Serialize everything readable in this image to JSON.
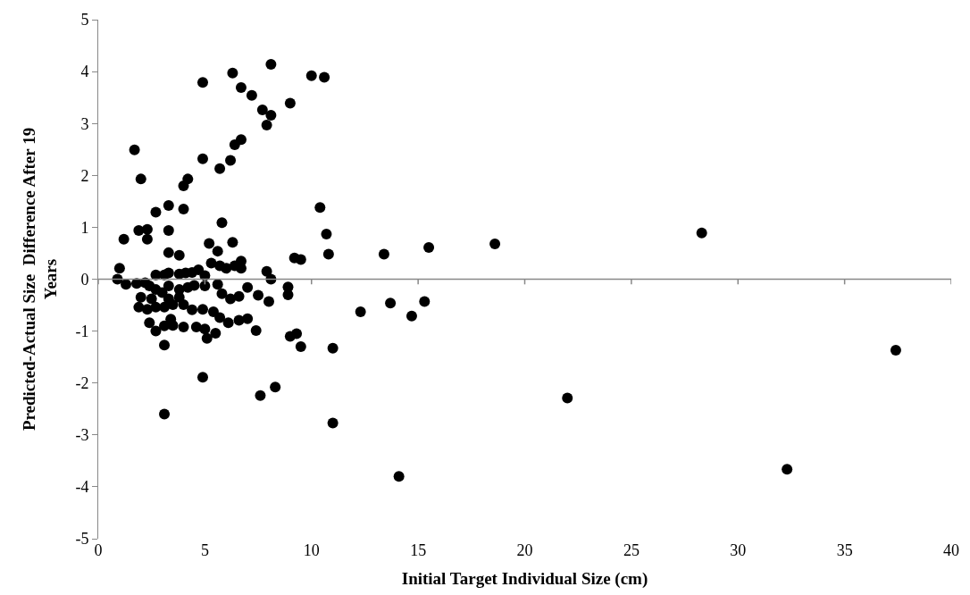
{
  "chart_data": {
    "type": "scatter",
    "xlabel": "Initial Target Individual Size (cm)",
    "ylabel": "Predicted-Actual Size  Difference After 19 Years",
    "x": [
      1.7,
      2.0,
      4.9,
      6.3,
      6.7,
      7.2,
      7.7,
      8.1,
      7.9,
      8.1,
      9.0,
      10.0,
      10.6,
      4.9,
      6.2,
      6.4,
      6.7,
      5.7,
      4.0,
      4.2,
      2.7,
      3.3,
      4.0,
      5.8,
      10.4,
      10.7,
      10.8,
      1.2,
      2.3,
      1.9,
      2.3,
      3.3,
      5.2,
      6.3,
      3.8,
      3.3,
      5.6,
      9.2,
      9.5,
      13.4,
      15.5,
      18.6,
      28.3,
      1.0,
      0.9,
      1.3,
      1.8,
      2.2,
      2.4,
      2.7,
      3.1,
      3.3,
      3.8,
      4.1,
      4.4,
      4.7,
      5.0,
      5.3,
      5.7,
      6.0,
      6.4,
      6.7,
      6.7,
      7.9,
      8.1,
      7.0,
      7.5,
      8.0,
      8.9,
      8.9,
      2.7,
      3.3,
      3.8,
      4.2,
      4.5,
      5.0,
      5.6,
      5.8,
      6.2,
      6.6,
      2.0,
      2.5,
      3.0,
      3.3,
      3.8,
      2.7,
      3.1,
      3.5,
      4.0,
      4.4,
      4.9,
      5.7,
      5.4,
      1.9,
      2.3,
      2.4,
      2.7,
      3.4,
      3.1,
      3.5,
      4.0,
      4.6,
      5.0,
      5.1,
      5.5,
      6.1,
      6.6,
      7.0,
      7.4,
      9.0,
      9.3,
      9.5,
      11.0,
      3.1,
      4.9,
      3.1,
      7.6,
      8.3,
      11.0,
      14.1,
      12.3,
      13.7,
      14.7,
      15.3,
      22.0,
      37.4,
      32.3
    ],
    "values": [
      2.49,
      1.93,
      3.79,
      3.97,
      3.69,
      3.54,
      3.26,
      3.16,
      2.97,
      4.14,
      3.39,
      3.92,
      3.89,
      2.32,
      2.29,
      2.59,
      2.69,
      2.13,
      1.8,
      1.93,
      1.29,
      1.42,
      1.35,
      1.09,
      1.38,
      0.87,
      0.48,
      0.77,
      0.96,
      0.94,
      0.77,
      0.94,
      0.69,
      0.71,
      0.46,
      0.51,
      0.54,
      0.41,
      0.38,
      0.48,
      0.61,
      0.68,
      0.89,
      0.21,
      0.0,
      -0.1,
      -0.08,
      -0.07,
      -0.13,
      0.08,
      0.08,
      0.12,
      0.1,
      0.12,
      0.13,
      0.18,
      0.07,
      0.31,
      0.26,
      0.21,
      0.26,
      0.21,
      0.35,
      0.15,
      0.0,
      -0.16,
      -0.31,
      -0.43,
      -0.15,
      -0.3,
      -0.2,
      -0.13,
      -0.2,
      -0.16,
      -0.12,
      -0.13,
      -0.1,
      -0.28,
      -0.38,
      -0.33,
      -0.35,
      -0.38,
      -0.26,
      -0.38,
      -0.35,
      -0.54,
      -0.54,
      -0.49,
      -0.49,
      -0.59,
      -0.58,
      -0.74,
      -0.63,
      -0.54,
      -0.58,
      -0.84,
      -1.0,
      -0.77,
      -0.9,
      -0.89,
      -0.92,
      -0.92,
      -0.96,
      -1.14,
      -1.04,
      -0.84,
      -0.79,
      -0.76,
      -0.99,
      -1.1,
      -1.05,
      -1.3,
      -1.33,
      -1.27,
      -1.89,
      -2.6,
      -2.24,
      -2.08,
      -2.77,
      -3.8,
      -0.63,
      -0.46,
      -0.71,
      -0.43,
      -2.29,
      -1.37,
      -3.66
    ],
    "color": "#000000",
    "marker": "circle",
    "xlim": [
      0,
      40
    ],
    "xticks": [
      0,
      5,
      10,
      15,
      20,
      25,
      30,
      35,
      40
    ],
    "ylim": [
      -5,
      5
    ],
    "yticks": [
      -5,
      -4,
      -3,
      -2,
      -1,
      0,
      1,
      2,
      3,
      4,
      5
    ],
    "legend": false
  }
}
